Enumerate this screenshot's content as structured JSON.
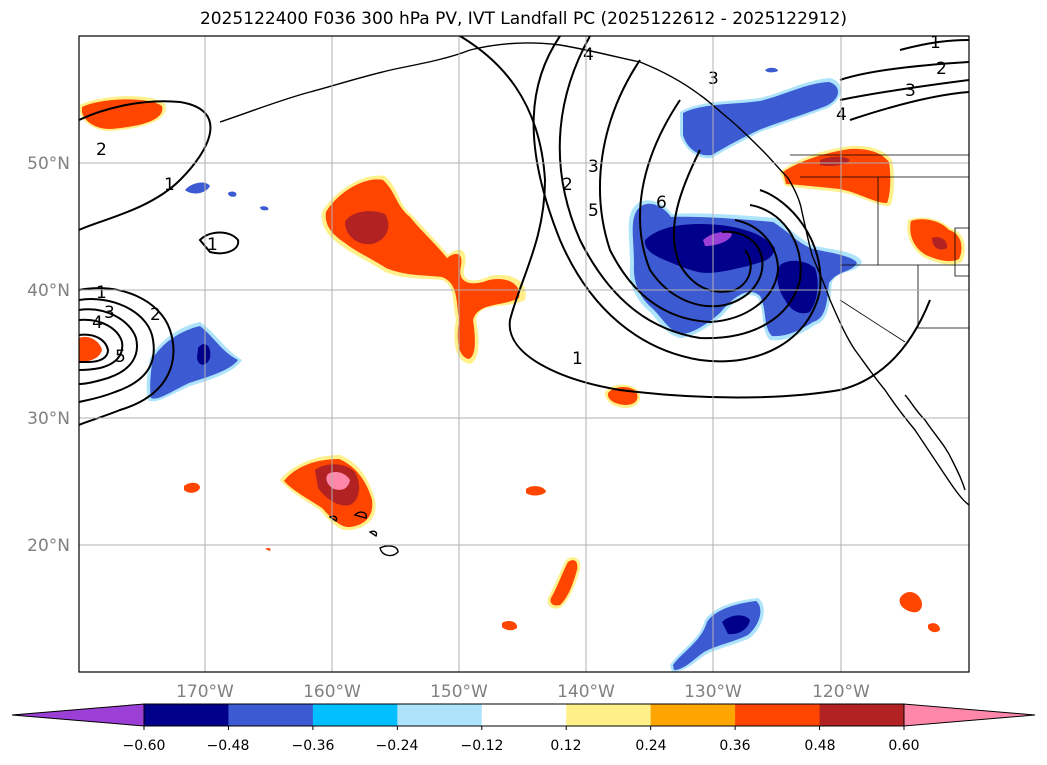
{
  "title": "2025122400 F036 300 hPa PV, IVT Landfall PC (2025122612 - 2025122912)",
  "map": {
    "lon_range": [
      -180,
      -110
    ],
    "lat_range": [
      10,
      60
    ],
    "lat_labels": [
      "50°N",
      "40°N",
      "30°N",
      "20°N"
    ],
    "lon_labels": [
      "170°W",
      "160°W",
      "150°W",
      "140°W",
      "130°W",
      "120°W"
    ],
    "contour_labels": [
      "1",
      "2",
      "3",
      "4",
      "5",
      "6"
    ],
    "gridline_color": "#b0b0b0",
    "coastline_color": "#000000",
    "contour_color": "#000000"
  },
  "colorbar": {
    "extend": "both",
    "colors": [
      "#9b3fd6",
      "#00008b",
      "#3c5ad2",
      "#00bfff",
      "#ade3fb",
      "#ffffff",
      "#fff08a",
      "#ffa500",
      "#ff4500",
      "#b22222",
      "#ff88aa"
    ],
    "tick_labels": [
      "−0.60",
      "−0.48",
      "−0.36",
      "−0.24",
      "−0.12",
      "0.12",
      "0.24",
      "0.36",
      "0.48",
      "0.60"
    ]
  }
}
